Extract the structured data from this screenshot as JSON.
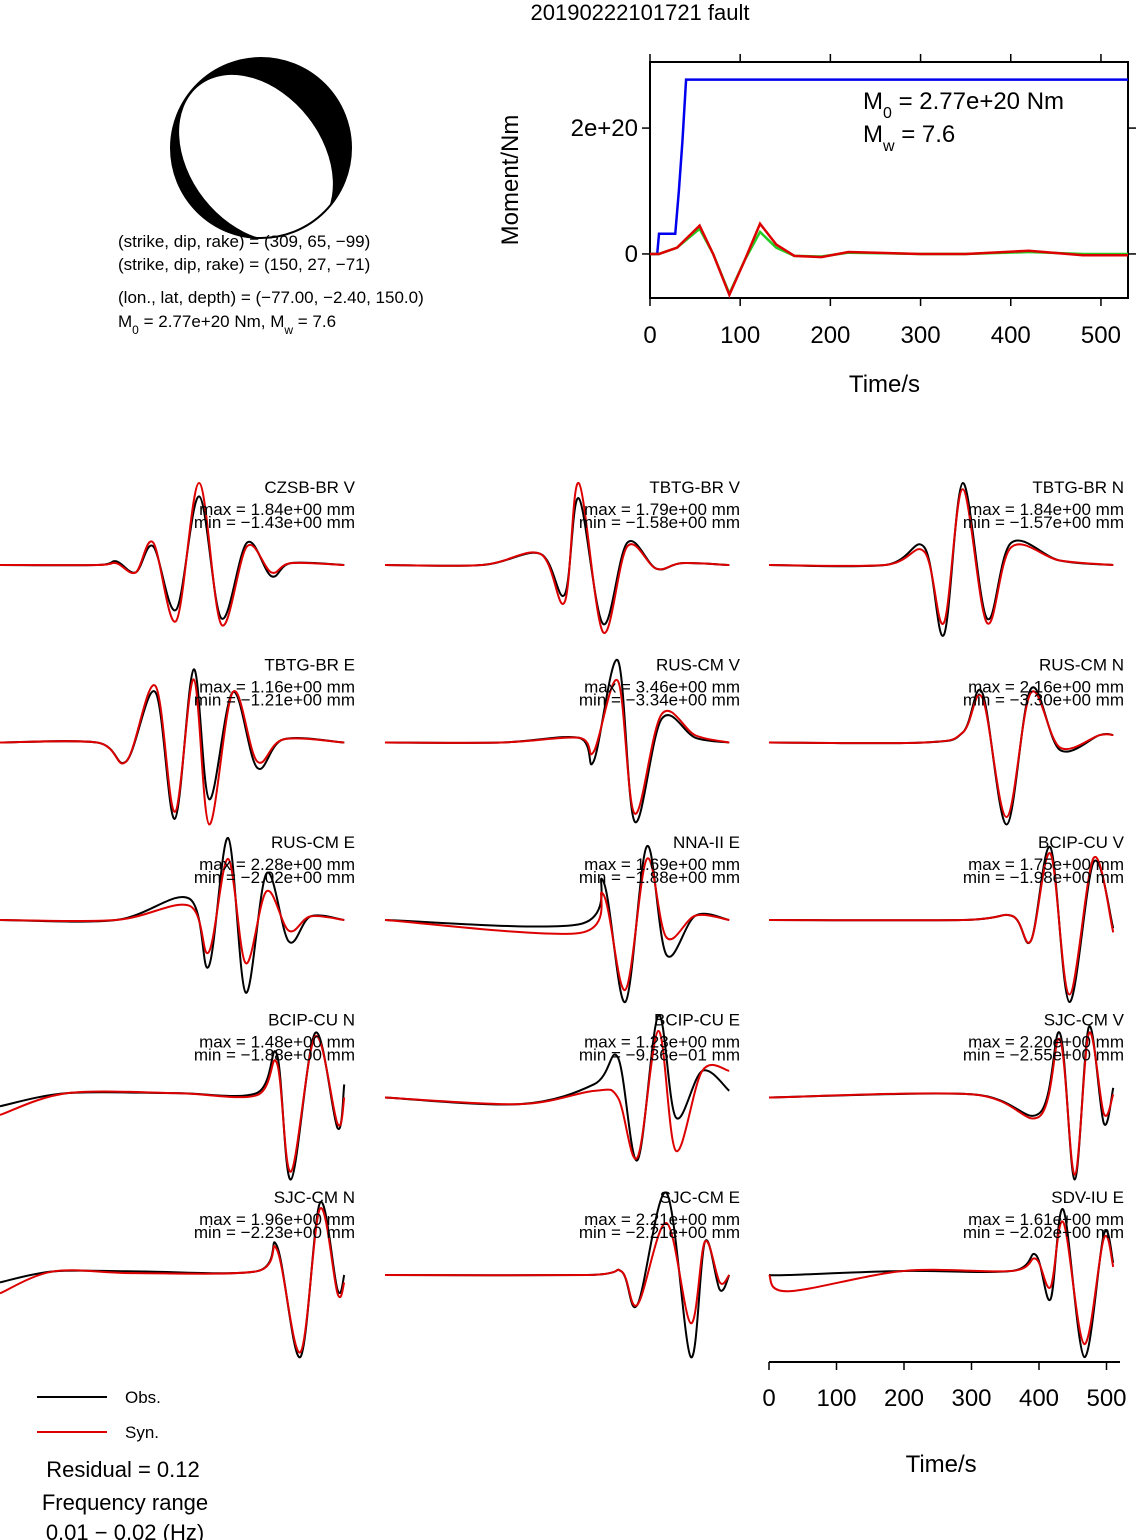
{
  "title": "20190222101721 fault",
  "beachball": {
    "plane1": "(strike, dip, rake) = (309, 65, −99)",
    "plane2": "(strike, dip, rake) = (150, 27, −71)",
    "location": "(lon., lat, depth) = (−77.00, −2.40, 150.0)",
    "moment_text": [
      "M",
      "0",
      " = 2.77e+20 Nm, M",
      "w",
      " = 7.6"
    ]
  },
  "chart_data": {
    "type": "line",
    "ylabel": "Moment/Nm",
    "xlabel": "Time/s",
    "xlim": [
      0,
      530
    ],
    "xticks": [
      0,
      100,
      200,
      300,
      400,
      500
    ],
    "ylim": [
      -7e+19,
      3.05e+20
    ],
    "yticks": [
      0,
      {
        "value": 2e+20,
        "label": "2e+20"
      }
    ],
    "annotation_m0": [
      "M",
      "0",
      " = 2.77e+20 Nm"
    ],
    "annotation_mw": [
      "M",
      "w",
      " = 7.6"
    ],
    "series": [
      {
        "color": "#0000ee",
        "x": [
          0,
          8,
          10,
          28,
          32,
          36,
          40,
          44,
          530
        ],
        "values": [
          0,
          0,
          3.2e+19,
          3.2e+19,
          1e+20,
          1.8e+20,
          2.77e+20,
          2.77e+20,
          2.77e+20
        ]
      },
      {
        "color": "#22cc22",
        "x": [
          0,
          10,
          30,
          55,
          70,
          88,
          105,
          122,
          140,
          160,
          190,
          220,
          300,
          350,
          420,
          480,
          530
        ],
        "values": [
          0,
          0,
          1e+19,
          4e+19,
          0,
          -6.3e+19,
          -1e+19,
          3.5e+19,
          1e+19,
          -3e+18,
          -4e+18,
          2e+18,
          0,
          0,
          3e+18,
          0,
          0
        ]
      },
      {
        "color": "#dd0000",
        "x": [
          0,
          10,
          30,
          55,
          70,
          88,
          105,
          122,
          140,
          160,
          190,
          220,
          300,
          350,
          420,
          480,
          530
        ],
        "values": [
          0,
          0,
          1e+19,
          4.5e+19,
          0,
          -6.5e+19,
          -1e+19,
          4.8e+19,
          1.5e+19,
          -3e+18,
          -5e+18,
          3e+18,
          0,
          0,
          5e+18,
          -2e+18,
          -2e+18
        ]
      }
    ]
  },
  "waveforms": {
    "xlim": [
      0,
      520
    ],
    "xticks": [
      0,
      100,
      200,
      300,
      400,
      500
    ],
    "xlabel": "Time/s",
    "legend": [
      {
        "name": "Obs.",
        "color": "#000000"
      },
      {
        "name": "Syn.",
        "color": "#dd0000"
      }
    ],
    "panels": [
      {
        "station": "CZSB-BR V",
        "max_label": "max = 1.84e+00 mm",
        "min_label": "min = −1.43e+00 mm",
        "x": [
          0,
          144,
          172,
          201,
          227,
          261,
          295,
          328,
          366,
          402,
          431,
          510
        ],
        "obs": [
          0,
          0,
          0.1,
          -0.2,
          0.5,
          -1.2,
          1.84,
          -1.43,
          0.6,
          -0.3,
          0.05,
          0
        ],
        "syn": [
          0,
          0,
          0.05,
          -0.2,
          0.6,
          -1.5,
          2.2,
          -1.6,
          0.5,
          -0.2,
          0.05,
          0
        ]
      },
      {
        "station": "TBTG-BR V",
        "max_label": "max = 1.79e+00 mm",
        "min_label": "min = −1.58e+00 mm",
        "x": [
          0,
          144,
          230,
          266,
          287,
          323,
          359,
          402,
          440,
          510
        ],
        "obs": [
          0,
          0,
          0.3,
          -0.8,
          1.79,
          -1.58,
          0.6,
          -0.1,
          0.05,
          0
        ],
        "syn": [
          0,
          0,
          0.3,
          -1.0,
          2.2,
          -1.8,
          0.5,
          -0.1,
          0.05,
          0
        ]
      },
      {
        "station": "TBTG-BR N",
        "max_label": "max = 1.84e+00 mm",
        "min_label": "min = −1.57e+00 mm",
        "x": [
          0,
          172,
          230,
          259,
          287,
          323,
          359,
          431,
          510
        ],
        "obs": [
          0,
          0,
          0.4,
          -1.57,
          1.84,
          -1.2,
          0.5,
          0.1,
          0
        ],
        "syn": [
          0,
          0,
          0.3,
          -1.3,
          1.7,
          -1.3,
          0.4,
          0.1,
          0
        ]
      },
      {
        "station": "TBTG-BR E",
        "max_label": "max = 1.16e+00 mm",
        "min_label": "min = −1.21e+00 mm",
        "x": [
          0,
          144,
          187,
          230,
          259,
          287,
          310,
          345,
          381,
          420,
          510
        ],
        "obs": [
          0,
          0,
          -0.3,
          0.8,
          -1.21,
          1.16,
          -0.9,
          0.8,
          -0.4,
          0.05,
          0
        ],
        "syn": [
          0,
          0,
          -0.3,
          0.9,
          -1.1,
          1.0,
          -1.3,
          0.8,
          -0.3,
          0.05,
          0
        ]
      },
      {
        "station": "RUS-CM V",
        "max_label": "max = 3.46e+00 mm",
        "min_label": "min = −3.34e+00 mm",
        "x": [
          0,
          172,
          287,
          309,
          345,
          370,
          410,
          460,
          510
        ],
        "obs": [
          0,
          0,
          0.2,
          -0.8,
          3.46,
          -3.34,
          1.0,
          0.2,
          0
        ],
        "syn": [
          0,
          0,
          0.2,
          -0.4,
          2.6,
          -3.0,
          1.2,
          0.3,
          0
        ]
      },
      {
        "station": "RUS-CM N",
        "max_label": "max = 2.16e+00 mm",
        "min_label": "min = −3.30e+00 mm",
        "x": [
          0,
          230,
          287,
          316,
          352,
          388,
          431,
          490,
          510
        ],
        "obs": [
          0,
          0,
          0.4,
          2.0,
          -3.3,
          2.16,
          -0.3,
          0.3,
          0.3
        ],
        "syn": [
          0,
          0,
          0.4,
          1.8,
          -3.0,
          2.0,
          -0.2,
          0.3,
          0.3
        ]
      },
      {
        "station": "RUS-CM E",
        "max_label": "max = 2.28e+00 mm",
        "min_label": "min = −2.02e+00 mm",
        "x": [
          0,
          172,
          280,
          309,
          338,
          364,
          395,
          428,
          460,
          510
        ],
        "obs": [
          0,
          0,
          0.6,
          -1.3,
          2.28,
          -2.02,
          1.3,
          -0.6,
          0.1,
          0
        ],
        "syn": [
          0,
          0,
          0.4,
          -0.9,
          1.7,
          -1.2,
          0.8,
          -0.3,
          0.1,
          0
        ]
      },
      {
        "station": "NNA-II E",
        "max_label": "max = 1.69e+00 mm",
        "min_label": "min = −1.88e+00 mm",
        "x": [
          0,
          287,
          323,
          356,
          388,
          417,
          460,
          510
        ],
        "obs": [
          0,
          -0.1,
          0.9,
          -1.88,
          1.69,
          -0.8,
          0.1,
          0
        ],
        "syn": [
          0,
          -0.3,
          0.6,
          -1.6,
          1.4,
          -0.4,
          0.1,
          0
        ]
      },
      {
        "station": "BCIP-CU V",
        "max_label": "max = 1.75e+00 mm",
        "min_label": "min = −1.98e+00 mm",
        "x": [
          0,
          287,
          360,
          388,
          417,
          445,
          481,
          510
        ],
        "obs": [
          0,
          0,
          0.1,
          -0.5,
          1.75,
          -1.98,
          1.4,
          -0.2
        ],
        "syn": [
          0,
          0,
          0.1,
          -0.5,
          1.6,
          -1.8,
          1.5,
          -0.3
        ]
      },
      {
        "station": "BCIP-CU N",
        "max_label": "max = 1.48e+00 mm",
        "min_label": "min = −1.88e+00 mm",
        "x": [
          0,
          100,
          260,
          380,
          410,
          431,
          467,
          500,
          510
        ],
        "obs": [
          -0.2,
          0.1,
          0.1,
          0.1,
          1.0,
          -1.88,
          1.48,
          -0.7,
          0.3
        ],
        "syn": [
          -0.4,
          0.1,
          0.1,
          0.05,
          0.8,
          -1.7,
          1.4,
          -0.6,
          0
        ]
      },
      {
        "station": "BCIP-CU E",
        "max_label": "max = 1.23e+00 mm",
        "min_label": "min = −9.36e−01 mm",
        "x": [
          0,
          200,
          310,
          345,
          374,
          405,
          431,
          470,
          510
        ],
        "obs": [
          0,
          -0.1,
          0.2,
          0.6,
          -0.94,
          1.23,
          -0.3,
          0.4,
          0.1
        ],
        "syn": [
          0,
          -0.1,
          0.1,
          0,
          -0.9,
          1.0,
          -0.8,
          0.4,
          0.4
        ]
      },
      {
        "station": "SJC-CM V",
        "max_label": "max = 2.20e+00 mm",
        "min_label": "min = −2.55e+00 mm",
        "x": [
          0,
          300,
          400,
          431,
          453,
          474,
          496,
          510
        ],
        "obs": [
          0,
          0.1,
          -0.5,
          2.0,
          -2.55,
          2.2,
          -0.8,
          0.3
        ],
        "syn": [
          0,
          0.1,
          -0.6,
          1.8,
          -2.4,
          2.0,
          -0.5,
          0.1
        ]
      },
      {
        "station": "SJC-CM N",
        "max_label": "max = 1.96e+00 mm",
        "min_label": "min = −2.23e+00 mm",
        "x": [
          0,
          80,
          200,
          380,
          410,
          445,
          474,
          500,
          510
        ],
        "obs": [
          -0.2,
          0.1,
          0.1,
          0.1,
          0.8,
          -2.23,
          1.96,
          -0.4,
          0
        ],
        "syn": [
          -0.5,
          0.1,
          0.05,
          0.1,
          0.7,
          -2.1,
          1.8,
          -0.5,
          -0.2
        ]
      },
      {
        "station": "SJC-CM E",
        "max_label": "max = 2.21e+00 mm",
        "min_label": "min = −2.21e+00 mm",
        "x": [
          0,
          300,
          350,
          374,
          417,
          453,
          474,
          496,
          510
        ],
        "obs": [
          0,
          0,
          0.1,
          -0.8,
          2.21,
          -2.21,
          0.9,
          -0.4,
          0
        ],
        "syn": [
          0,
          0,
          0.1,
          -0.8,
          1.4,
          -1.3,
          0.9,
          -0.2,
          0
        ]
      },
      {
        "station": "SDV-IU E",
        "max_label": "max = 1.61e+00 mm",
        "min_label": "min = −2.02e+00 mm",
        "x": [
          0,
          29,
          200,
          360,
          395,
          417,
          436,
          467,
          496,
          510
        ],
        "obs": [
          0,
          0,
          0.1,
          0.1,
          0.5,
          -0.6,
          1.61,
          -2.02,
          1.0,
          0.3
        ],
        "syn": [
          0,
          -0.4,
          0.1,
          0.1,
          0.4,
          -0.3,
          1.3,
          -1.7,
          0.9,
          0.2
        ]
      }
    ]
  },
  "residual": "Residual = 0.12",
  "frequency_title": "Frequency range",
  "frequency_range": "0.01 − 0.02 (Hz)"
}
